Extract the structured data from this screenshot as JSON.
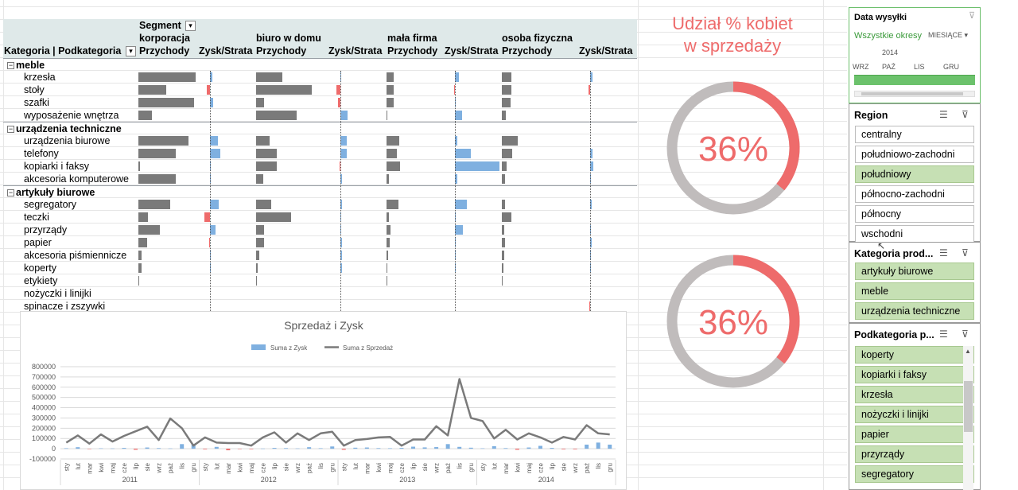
{
  "pivot": {
    "header": {
      "segment_label": "Segment",
      "row_header": "Kategoria | Podkategoria",
      "segments": [
        {
          "name": "korporacja",
          "revenue_label": "Przychody",
          "profit_label": "Zysk/Strata"
        },
        {
          "name": "biuro w domu",
          "revenue_label": "Przychody",
          "profit_label": "Zysk/Strata"
        },
        {
          "name": "mała firma",
          "revenue_label": "Przychody",
          "profit_label": "Zysk/Strata"
        },
        {
          "name": "osoba fizyczna",
          "revenue_label": "Przychody",
          "profit_label": "Zysk/Strata"
        }
      ]
    },
    "categories": [
      {
        "name": "meble",
        "items": [
          {
            "name": "krzesła",
            "rev": [
              1.0,
              0.46,
              0.24,
              0.29
            ],
            "prof": [
              0.11,
              0.03,
              0.09,
              0.15
            ]
          },
          {
            "name": "stoły",
            "rev": [
              0.49,
              0.97,
              0.24,
              0.29
            ],
            "prof": [
              -0.13,
              -0.16,
              -0.02,
              -0.08
            ]
          },
          {
            "name": "szafki",
            "rev": [
              0.97,
              0.14,
              0.24,
              0.25
            ],
            "prof": [
              0.14,
              -0.1,
              0.01,
              0.0
            ]
          },
          {
            "name": "wyposażenie wnętrza",
            "rev": [
              0.24,
              0.71,
              0.01,
              0.12
            ],
            "prof": [
              0.0,
              0.3,
              0.16,
              0.0
            ]
          }
        ]
      },
      {
        "name": "urządzenia techniczne",
        "items": [
          {
            "name": "urządzenia biurowe",
            "rev": [
              0.88,
              0.24,
              0.44,
              0.47
            ],
            "prof": [
              0.33,
              0.25,
              0.06,
              0.0
            ]
          },
          {
            "name": "telefony",
            "rev": [
              0.65,
              0.36,
              0.35,
              0.3
            ],
            "prof": [
              0.44,
              0.25,
              0.36,
              0.13
            ]
          },
          {
            "name": "kopiarki i faksy",
            "rev": [
              0.03,
              0.36,
              0.48,
              0.14
            ],
            "prof": [
              0.01,
              -0.01,
              1.0,
              0.19
            ]
          },
          {
            "name": "akcesoria komputerowe",
            "rev": [
              0.65,
              0.13,
              0.09,
              0.1
            ],
            "prof": [
              0.03,
              0.05,
              0.05,
              0.01
            ]
          }
        ]
      },
      {
        "name": "artykuły biurowe",
        "items": [
          {
            "name": "segregatory",
            "rev": [
              0.56,
              0.26,
              0.41,
              0.09
            ],
            "prof": [
              0.38,
              0.05,
              0.27,
              0.09
            ]
          },
          {
            "name": "teczki",
            "rev": [
              0.17,
              0.61,
              0.09,
              0.28
            ],
            "prof": [
              -0.22,
              0.02,
              0.02,
              0.0
            ]
          },
          {
            "name": "przyrządy",
            "rev": [
              0.38,
              0.14,
              0.13,
              0.07
            ],
            "prof": [
              0.24,
              0.01,
              0.17,
              0.02
            ]
          },
          {
            "name": "papier",
            "rev": [
              0.15,
              0.14,
              0.12,
              0.1
            ],
            "prof": [
              -0.03,
              0.05,
              0.02,
              0.07
            ]
          },
          {
            "name": "akcesoria piśmiennicze",
            "rev": [
              0.06,
              0.06,
              0.06,
              0.06
            ],
            "prof": [
              0.01,
              0.05,
              0.01,
              0.01
            ]
          },
          {
            "name": "koperty",
            "rev": [
              0.05,
              0.03,
              0.04,
              0.04
            ],
            "prof": [
              0.02,
              0.05,
              0.02,
              0.02
            ]
          },
          {
            "name": "etykiety",
            "rev": [
              0.02,
              0.01,
              0.01,
              0.01
            ],
            "prof": [
              0.0,
              0.0,
              0.0,
              0.0
            ]
          },
          {
            "name": "nożyczki i linijki",
            "rev": [
              0.0,
              0.0,
              0.0,
              0.0
            ],
            "prof": [
              0.0,
              0.0,
              0.0,
              0.0
            ]
          },
          {
            "name": "spinacze i zszywki",
            "rev": [
              0.0,
              0.0,
              0.0,
              0.0
            ],
            "prof": [
              0.0,
              0.0,
              0.0,
              -0.01
            ]
          }
        ]
      }
    ]
  },
  "donut_title_line1": "Udział % kobiet",
  "donut_title_line2": "w sprzedaży",
  "donuts": [
    {
      "value_label": "36%",
      "fraction": 0.36
    },
    {
      "value_label": "36%",
      "fraction": 0.36
    }
  ],
  "colors": {
    "accent": "#ee6b6b",
    "grey": "#7a7a7a",
    "profit_blue": "#7fb0e0",
    "slicer_selected": "#c6e0b4",
    "donut_track": "#c0bcbc"
  },
  "date_slicer": {
    "title": "Data wysyłki",
    "all_periods": "Wszystkie okresy",
    "level": "MIESIĄCE",
    "year": "2014",
    "months": [
      "WRZ",
      "PAŹ",
      "LIS",
      "GRU"
    ]
  },
  "region_slicer": {
    "title": "Region",
    "items": [
      {
        "label": "centralny",
        "selected": false
      },
      {
        "label": "południowo-zachodni",
        "selected": false
      },
      {
        "label": "południowy",
        "selected": true
      },
      {
        "label": "północno-zachodni",
        "selected": false
      },
      {
        "label": "północny",
        "selected": false
      },
      {
        "label": "wschodni",
        "selected": false
      }
    ]
  },
  "category_slicer": {
    "title": "Kategoria prod...",
    "items": [
      {
        "label": "artykuły biurowe",
        "selected": true
      },
      {
        "label": "meble",
        "selected": true
      },
      {
        "label": "urządzenia techniczne",
        "selected": true
      }
    ]
  },
  "subcategory_slicer": {
    "title": "Podkategoria p...",
    "items": [
      {
        "label": "koperty",
        "selected": true
      },
      {
        "label": "kopiarki i faksy",
        "selected": true
      },
      {
        "label": "krzesła",
        "selected": true
      },
      {
        "label": "nożyczki i linijki",
        "selected": true
      },
      {
        "label": "papier",
        "selected": true
      },
      {
        "label": "przyrządy",
        "selected": true
      },
      {
        "label": "segregatory",
        "selected": true
      }
    ]
  },
  "chart_data": {
    "type": "bar+line",
    "title": "Sprzedaż i Zysk",
    "legend": "top",
    "series": [
      {
        "name": "Suma z Zysk",
        "type": "bar",
        "values": [
          5000,
          15000,
          -3000,
          4000,
          3000,
          8000,
          -10000,
          12000,
          6000,
          3000,
          45000,
          48000,
          -6000,
          18000,
          -15000,
          -3000,
          -5000,
          2000,
          8000,
          6000,
          3000,
          15000,
          5000,
          22000,
          -10000,
          10000,
          12000,
          6000,
          5000,
          8000,
          20000,
          13000,
          16000,
          45000,
          18000,
          10000,
          4000,
          25000,
          6000,
          -10000,
          12000,
          28000,
          8000,
          -6000,
          -6000,
          40000,
          60000,
          40000
        ]
      },
      {
        "name": "Suma z Sprzedaż",
        "type": "line",
        "values": [
          60000,
          130000,
          50000,
          140000,
          70000,
          125000,
          170000,
          215000,
          85000,
          295000,
          200000,
          30000,
          110000,
          60000,
          55000,
          55000,
          30000,
          110000,
          160000,
          60000,
          150000,
          85000,
          150000,
          165000,
          30000,
          85000,
          95000,
          110000,
          115000,
          30000,
          90000,
          90000,
          220000,
          130000,
          680000,
          300000,
          270000,
          100000,
          185000,
          90000,
          150000,
          110000,
          60000,
          115000,
          90000,
          230000,
          150000,
          140000
        ]
      }
    ],
    "x": [
      "sty",
      "lut",
      "mar",
      "kwi",
      "maj",
      "cze",
      "lip",
      "sie",
      "wrz",
      "paź",
      "lis",
      "gru",
      "sty",
      "lut",
      "mar",
      "kwi",
      "maj",
      "cze",
      "lip",
      "sie",
      "wrz",
      "paź",
      "lis",
      "gru",
      "sty",
      "lut",
      "mar",
      "kwi",
      "maj",
      "cze",
      "lip",
      "sie",
      "wrz",
      "paź",
      "lis",
      "gru",
      "sty",
      "lut",
      "mar",
      "kwi",
      "maj",
      "cze",
      "lip",
      "sie",
      "wrz",
      "paź",
      "lis",
      "gru"
    ],
    "years": [
      "2011",
      "2012",
      "2013",
      "2014"
    ],
    "y_ticks": [
      "800000",
      "700000",
      "600000",
      "500000",
      "400000",
      "300000",
      "200000",
      "100000",
      "0",
      "-100000"
    ],
    "ylim": [
      -100000,
      800000
    ],
    "grid": true
  }
}
